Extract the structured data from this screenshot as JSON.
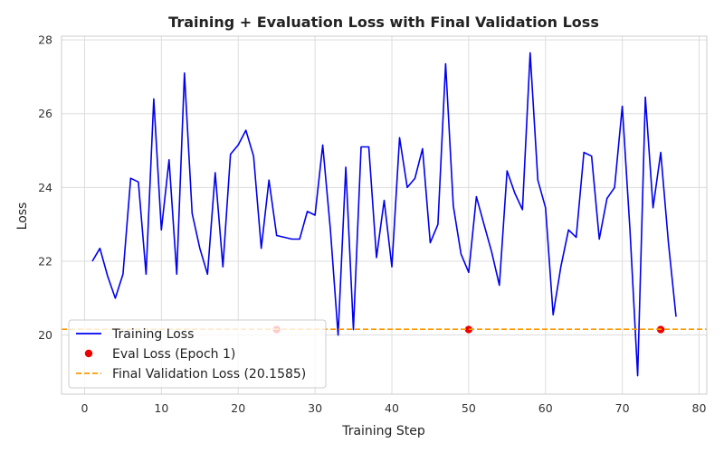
{
  "chart_data": {
    "type": "line",
    "title": "Training + Evaluation Loss with Final Validation Loss",
    "xlabel": "Training Step",
    "ylabel": "Loss",
    "xlim": [
      -3,
      81
    ],
    "ylim": [
      18.4,
      28.1
    ],
    "xticks": [
      0,
      10,
      20,
      30,
      40,
      50,
      60,
      70,
      80
    ],
    "yticks": [
      20,
      22,
      24,
      26,
      28
    ],
    "grid": true,
    "legend_position": "lower-left",
    "series": [
      {
        "name": "Training Loss",
        "kind": "line",
        "color": "#0000ee",
        "x": [
          1,
          2,
          3,
          4,
          5,
          6,
          7,
          8,
          9,
          10,
          11,
          12,
          13,
          14,
          15,
          16,
          17,
          18,
          19,
          20,
          21,
          22,
          23,
          24,
          25,
          26,
          27,
          28,
          29,
          30,
          31,
          32,
          33,
          34,
          35,
          36,
          37,
          38,
          39,
          40,
          41,
          42,
          43,
          44,
          45,
          46,
          47,
          48,
          49,
          50,
          51,
          52,
          53,
          54,
          55,
          56,
          57,
          58,
          59,
          60,
          61,
          62,
          63,
          64,
          65,
          66,
          67,
          68,
          69,
          70,
          71,
          72,
          73,
          74,
          75,
          76,
          77
        ],
        "y": [
          22.0,
          22.35,
          21.6,
          21.0,
          21.65,
          24.25,
          24.15,
          21.65,
          26.4,
          22.85,
          24.75,
          21.65,
          27.1,
          23.3,
          22.35,
          21.65,
          24.4,
          21.85,
          24.9,
          25.15,
          25.55,
          24.85,
          22.35,
          24.2,
          22.7,
          22.65,
          22.6,
          22.6,
          23.35,
          23.25,
          25.15,
          22.85,
          20.0,
          24.55,
          20.15,
          25.1,
          25.1,
          22.1,
          23.65,
          21.85,
          25.35,
          24.0,
          24.25,
          25.05,
          22.5,
          23.0,
          27.35,
          23.5,
          22.2,
          21.7,
          23.75,
          23.0,
          22.25,
          21.35,
          24.45,
          23.85,
          23.4,
          27.65,
          24.2,
          23.45,
          20.55,
          21.85,
          22.85,
          22.65,
          24.95,
          24.85,
          22.6,
          23.7,
          24.0,
          26.2,
          22.85,
          18.9,
          26.45,
          23.45,
          24.95,
          22.5,
          20.5
        ]
      },
      {
        "name": "Eval Loss (Epoch 1)",
        "kind": "scatter",
        "color": "#ee0000",
        "x": [
          25,
          50,
          75
        ],
        "y": [
          20.15,
          20.15,
          20.15
        ]
      },
      {
        "name": "Final Validation Loss (20.1585)",
        "kind": "hline",
        "color": "#ff9900",
        "y": 20.1585
      }
    ]
  }
}
